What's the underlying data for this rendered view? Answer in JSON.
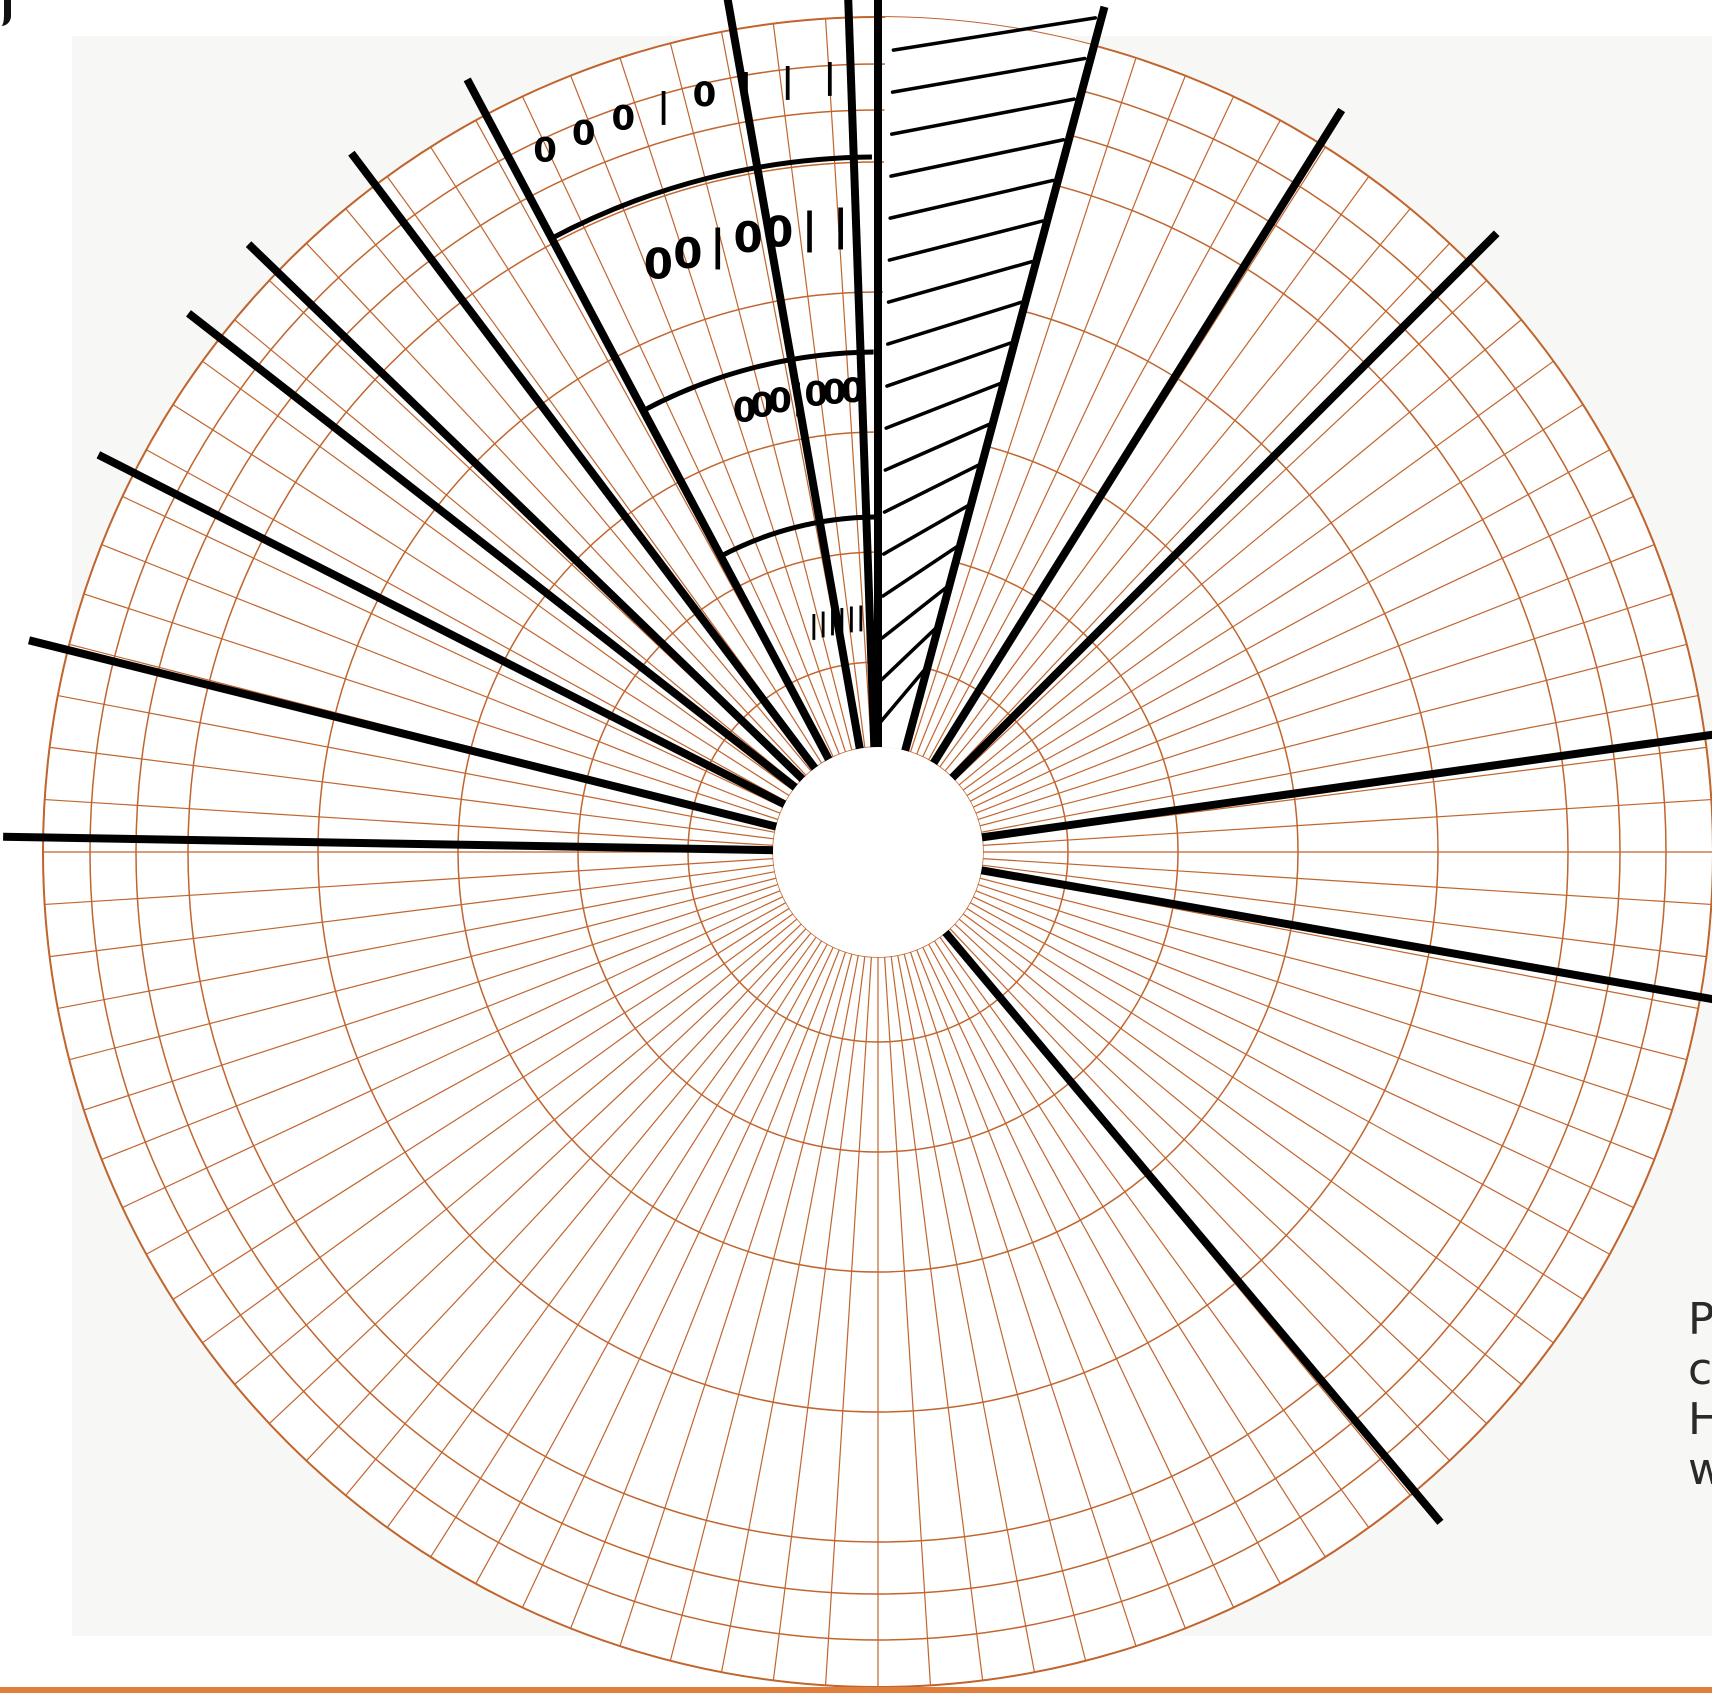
{
  "figure": {
    "fill_color": "#c97a4a",
    "line_color": "#c1652e",
    "ink_color": "#000000",
    "edge_text_lines": [
      "P",
      "c",
      "H",
      "w"
    ],
    "accent_rule_color": "#e07f3b",
    "spoke_count": 16,
    "sector_count": 100,
    "hand_marks": {
      "outer_band": [
        "0",
        "0",
        "0",
        "|",
        "0",
        "|",
        "|",
        "|"
      ],
      "band_two": [
        "0",
        "0",
        "|",
        "0",
        "0",
        "|",
        "|"
      ],
      "band_three": [
        "0",
        "0",
        "0",
        "|",
        "0",
        "0",
        "0"
      ],
      "band_four": [
        "|",
        "|",
        "|",
        "|",
        "|",
        "|"
      ]
    }
  }
}
